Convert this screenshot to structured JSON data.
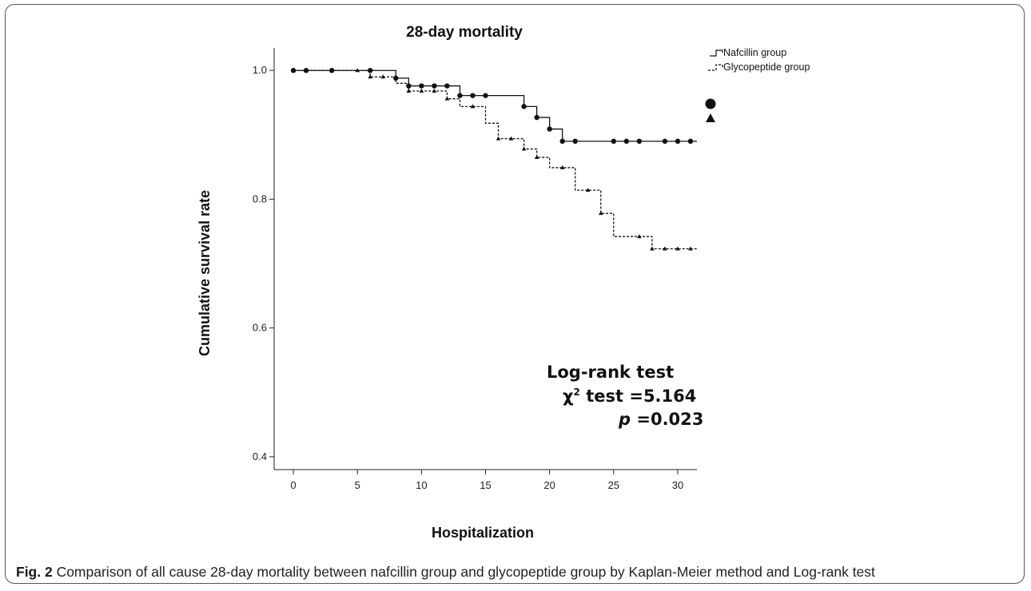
{
  "chart_data": {
    "type": "line",
    "subtype": "kaplan-meier step",
    "title": "28-day mortality",
    "xlabel": "Hospitalization",
    "ylabel": "Cumulative survival rate",
    "xlim": [
      -1.5,
      31.5
    ],
    "ylim": [
      0.38,
      1.035
    ],
    "x_ticks": [
      0,
      5,
      10,
      15,
      20,
      25,
      30
    ],
    "y_ticks": [
      0.4,
      0.6,
      0.8,
      1.0
    ],
    "x_tick_labels": [
      "0",
      "5",
      "10",
      "15",
      "20",
      "25",
      "30"
    ],
    "y_tick_labels": [
      "0.4",
      "0.6",
      "0.8",
      "1.0"
    ],
    "grid": false,
    "legend_position": "top-right",
    "series": [
      {
        "name": "Nafcillin group",
        "line_style": "solid",
        "marker": "circle",
        "steps": [
          [
            0,
            1.0
          ],
          [
            8,
            0.988
          ],
          [
            9,
            0.976
          ],
          [
            13,
            0.961
          ],
          [
            18,
            0.944
          ],
          [
            19,
            0.927
          ],
          [
            20,
            0.909
          ],
          [
            21,
            0.89
          ],
          [
            31.5,
            0.89
          ]
        ],
        "censored": [
          [
            0,
            1.0
          ],
          [
            1,
            1.0
          ],
          [
            3,
            1.0
          ],
          [
            6,
            1.0
          ],
          [
            8,
            0.988
          ],
          [
            9,
            0.976
          ],
          [
            10,
            0.976
          ],
          [
            11,
            0.976
          ],
          [
            12,
            0.976
          ],
          [
            13,
            0.961
          ],
          [
            14,
            0.961
          ],
          [
            15,
            0.961
          ],
          [
            18,
            0.944
          ],
          [
            19,
            0.927
          ],
          [
            20,
            0.909
          ],
          [
            21,
            0.89
          ],
          [
            22,
            0.89
          ],
          [
            25,
            0.89
          ],
          [
            26,
            0.89
          ],
          [
            27,
            0.89
          ],
          [
            29,
            0.89
          ],
          [
            30,
            0.89
          ],
          [
            31,
            0.89
          ]
        ]
      },
      {
        "name": "Glycopeptide group",
        "line_style": "dashed",
        "marker": "triangle",
        "steps": [
          [
            0,
            1.0
          ],
          [
            6,
            0.99
          ],
          [
            8,
            0.98
          ],
          [
            9,
            0.968
          ],
          [
            12,
            0.956
          ],
          [
            13,
            0.944
          ],
          [
            15,
            0.918
          ],
          [
            16,
            0.894
          ],
          [
            18,
            0.878
          ],
          [
            19,
            0.865
          ],
          [
            20,
            0.849
          ],
          [
            22,
            0.814
          ],
          [
            24,
            0.778
          ],
          [
            25,
            0.742
          ],
          [
            28,
            0.723
          ],
          [
            31.5,
            0.723
          ]
        ],
        "censored": [
          [
            0,
            1.0
          ],
          [
            1,
            1.0
          ],
          [
            3,
            1.0
          ],
          [
            5,
            1.0
          ],
          [
            6,
            0.99
          ],
          [
            7,
            0.99
          ],
          [
            9,
            0.968
          ],
          [
            10,
            0.968
          ],
          [
            11,
            0.968
          ],
          [
            12,
            0.956
          ],
          [
            14,
            0.944
          ],
          [
            16,
            0.894
          ],
          [
            17,
            0.894
          ],
          [
            18,
            0.878
          ],
          [
            19,
            0.865
          ],
          [
            21,
            0.849
          ],
          [
            23,
            0.814
          ],
          [
            24,
            0.778
          ],
          [
            27,
            0.742
          ],
          [
            28,
            0.723
          ],
          [
            29,
            0.723
          ],
          [
            30,
            0.723
          ],
          [
            31,
            0.723
          ]
        ]
      }
    ],
    "annotations": {
      "test_name": "Log-rank test",
      "chi_label": "χ",
      "chi_sup": "2",
      "chi_rest": " test =5.164",
      "p_label": "p",
      "p_rest": " =0.023"
    }
  },
  "caption": {
    "fig_label": "Fig. 2",
    "text": " Comparison of all cause 28-day mortality between nafcillin group and glycopeptide group by Kaplan-Meier method and Log-rank test"
  }
}
